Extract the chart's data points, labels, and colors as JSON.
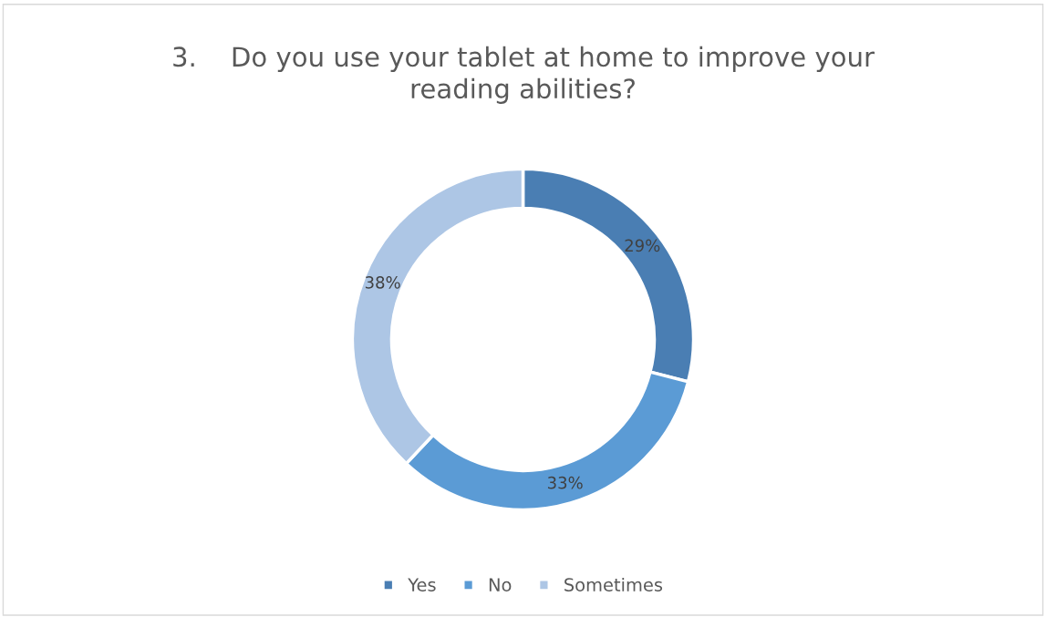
{
  "chart_data": {
    "type": "donut",
    "title": "3.    Do you use your tablet at home to improve your\nreading abilities?",
    "categories": [
      "Yes",
      "No",
      "Sometimes"
    ],
    "values": [
      29,
      33,
      38
    ],
    "colors": [
      "#4a7eb3",
      "#5b9bd5",
      "#adc6e5"
    ],
    "value_labels": [
      "29%",
      "33%",
      "38%"
    ],
    "legend": "bottom"
  }
}
